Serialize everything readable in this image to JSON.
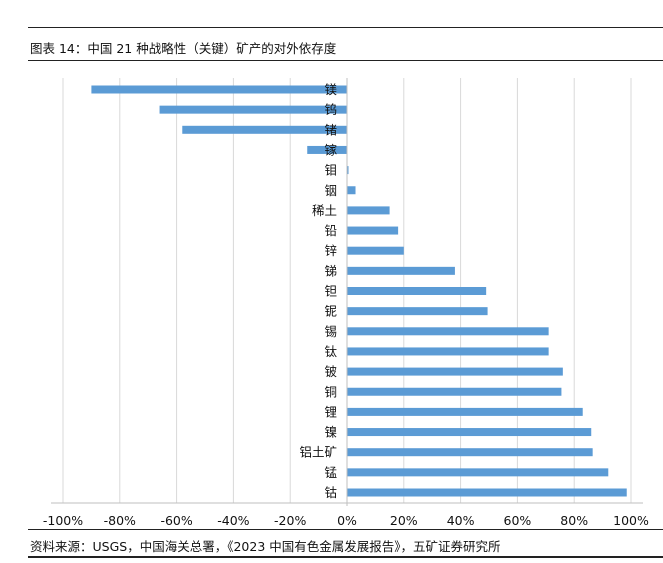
{
  "header": {
    "caption": "图表 14：中国 21 种战略性（关键）矿产的对外依存度"
  },
  "footer": {
    "source": "资料来源：USGS，中国海关总署，《2023 中国有色金属发展报告》，五矿证券研究所"
  },
  "colors": {
    "bar": "#5b9bd5",
    "grid": "#d9d9d9",
    "axis": "#bfbfbf",
    "rule": "#222222"
  },
  "chart_data": {
    "type": "bar",
    "orientation": "horizontal",
    "title": "中国 21 种战略性（关键）矿产的对外依存度",
    "xlabel": "",
    "ylabel": "",
    "xlim": [
      -1.0,
      1.0
    ],
    "x_ticks": [
      -1.0,
      -0.8,
      -0.6,
      -0.4,
      -0.2,
      0,
      0.2,
      0.4,
      0.6,
      0.8,
      1.0
    ],
    "x_tick_labels": [
      "-100%",
      "-80%",
      "-60%",
      "-40%",
      "-20%",
      "0%",
      "20%",
      "40%",
      "60%",
      "80%",
      "100%"
    ],
    "grid": "vertical",
    "legend": "none",
    "categories": [
      "镁",
      "钨",
      "锗",
      "镓",
      "钼",
      "铟",
      "稀土",
      "铅",
      "锌",
      "锑",
      "钽",
      "铌",
      "锡",
      "钛",
      "铍",
      "铜",
      "锂",
      "镍",
      "铝土矿",
      "锰",
      "钴"
    ],
    "values": [
      -0.9,
      -0.66,
      -0.58,
      -0.14,
      0.005,
      0.03,
      0.15,
      0.18,
      0.2,
      0.38,
      0.49,
      0.495,
      0.71,
      0.71,
      0.76,
      0.755,
      0.83,
      0.86,
      0.865,
      0.92,
      0.985
    ]
  }
}
